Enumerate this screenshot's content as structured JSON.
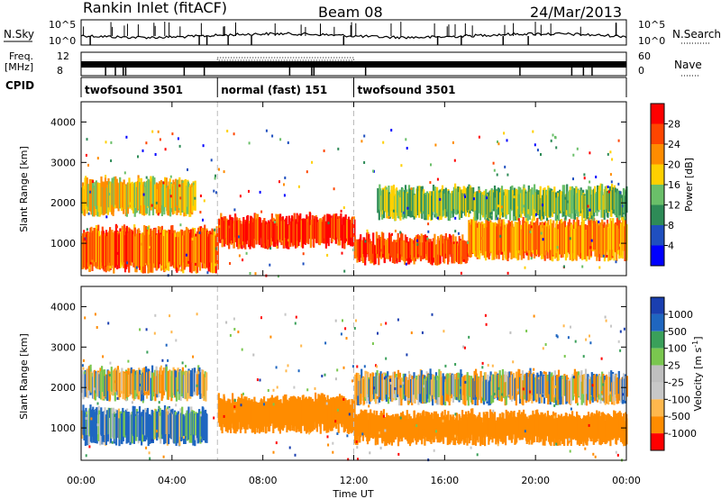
{
  "header": {
    "radar": "Rankin Inlet (fitACF)",
    "beam": "Beam 08",
    "date": "24/Mar/2013"
  },
  "panels": {
    "nsky_label": "N.Sky",
    "nsearch_label": "N.Search",
    "freq_label_1": "Freq.",
    "freq_label_2": "[MHz]",
    "nave_label": "Nave",
    "cpid_label": "CPID",
    "nsky_ticks": [
      "10^5",
      "10^0"
    ],
    "nsearch_ticks": [
      "10^5",
      "10^0"
    ],
    "freq_ticks": [
      "12",
      "8"
    ],
    "nave_ticks": [
      "60",
      "0"
    ]
  },
  "cpid_segments": [
    {
      "name": "twofsound 3501",
      "start": 0,
      "end": 6
    },
    {
      "name": "normal (fast) 151",
      "start": 6,
      "end": 12
    },
    {
      "name": "twofsound 3501",
      "start": 12,
      "end": 24
    }
  ],
  "colors": {
    "power": [
      "#0000ff",
      "#1f4fbf",
      "#2e8b57",
      "#6abf69",
      "#ffd000",
      "#ff8c00",
      "#ff4500",
      "#ff0000"
    ],
    "velocity": [
      "#ff0000",
      "#ff8c00",
      "#ffb84d",
      "#c8c8c8",
      "#bfbfbf",
      "#7ac74f",
      "#3aa05a",
      "#1f66c0",
      "#1a3fb0"
    ]
  },
  "chart_data": [
    {
      "type": "heatmap",
      "name": "power",
      "ylabel": "Slant Range [km]",
      "xlim": [
        0,
        24
      ],
      "ylim": [
        200,
        4500
      ],
      "yticks": [
        1000,
        2000,
        3000,
        4000
      ],
      "colorbar": {
        "label": "Power [dB]",
        "ticks": [
          4,
          8,
          12,
          16,
          20,
          24,
          28
        ],
        "range": [
          0,
          32
        ]
      },
      "bands": [
        {
          "x0": 0.0,
          "x1": 6.0,
          "y0": 400,
          "y1": 1400,
          "v": 24
        },
        {
          "x0": 0.0,
          "x1": 5.0,
          "y0": 1800,
          "y1": 2600,
          "v": 18
        },
        {
          "x0": 6.0,
          "x1": 12.0,
          "y0": 1000,
          "y1": 1700,
          "v": 28
        },
        {
          "x0": 12.0,
          "x1": 17.0,
          "y0": 600,
          "y1": 1200,
          "v": 26
        },
        {
          "x0": 17.0,
          "x1": 24.0,
          "y0": 700,
          "y1": 1600,
          "v": 22
        },
        {
          "x0": 13.0,
          "x1": 24.0,
          "y0": 1700,
          "y1": 2400,
          "v": 14
        }
      ]
    },
    {
      "type": "heatmap",
      "name": "velocity",
      "ylabel": "Slant Range [km]",
      "xlabel": "Time UT",
      "xlim": [
        0,
        24
      ],
      "ylim": [
        200,
        4500
      ],
      "yticks": [
        1000,
        2000,
        3000,
        4000
      ],
      "xticks": [
        "00:00",
        "04:00",
        "08:00",
        "12:00",
        "16:00",
        "20:00",
        "00:00"
      ],
      "colorbar": {
        "label": "Velocity [m s^-1]",
        "ticks": [
          1000,
          500,
          100,
          25,
          -25,
          -100,
          -500,
          -1000
        ]
      },
      "bands": [
        {
          "x0": 0.0,
          "x1": 5.5,
          "y0": 1800,
          "y1": 2500,
          "v": 0
        },
        {
          "x0": 0.0,
          "x1": 5.5,
          "y0": 700,
          "y1": 1500,
          "v": 150
        },
        {
          "x0": 6.0,
          "x1": 12.0,
          "y0": 1000,
          "y1": 1800,
          "v": -300
        },
        {
          "x0": 12.0,
          "x1": 24.0,
          "y0": 1700,
          "y1": 2400,
          "v": 0
        },
        {
          "x0": 12.0,
          "x1": 24.0,
          "y0": 700,
          "y1": 1400,
          "v": -300
        }
      ]
    }
  ],
  "axes": {
    "power_colorbar_label": "Power [dB]",
    "velocity_colorbar_label": "Velocity [m s",
    "velocity_colorbar_sup": "-1",
    "velocity_colorbar_end": "]",
    "xlabel": "Time UT"
  }
}
